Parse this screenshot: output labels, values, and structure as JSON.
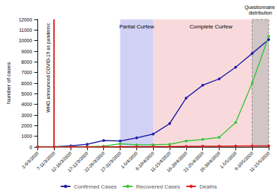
{
  "chart_data": {
    "type": "line",
    "y_label": "Number of cases",
    "categories": [
      "2-6/3/2020",
      "7-11/3/2020",
      "12-16/3/2020",
      "17-12/3/2020",
      "22-26/3/2020",
      "27-31/3/2020",
      "1-5/4/2020",
      "6-10/4/2020",
      "11-15/4/2020",
      "16-20/4/2020",
      "21-25/4/2020",
      "26-30/4/2020",
      "1-5/5/2020",
      "6-10/5/2020",
      "11-15/5/2020"
    ],
    "series": [
      {
        "name": "Confirmed Cases",
        "color": "#1f1fa8",
        "marker": "circle",
        "values": [
          5,
          20,
          100,
          250,
          600,
          550,
          850,
          1200,
          2200,
          4600,
          5800,
          6400,
          7500,
          8800,
          10100
        ]
      },
      {
        "name": "Recovered Cases",
        "color": "#3cc43c",
        "marker": "circle",
        "values": [
          0,
          0,
          10,
          20,
          60,
          300,
          200,
          200,
          250,
          550,
          700,
          900,
          2300,
          6000,
          10400
        ]
      },
      {
        "name": "Deaths",
        "color": "#e02020",
        "marker": "circle",
        "values": [
          0,
          0,
          0,
          0,
          5,
          10,
          15,
          20,
          30,
          50,
          60,
          70,
          80,
          90,
          100
        ]
      }
    ],
    "annotations": [
      {
        "text": "WHO announced COVID-19 as pandemic",
        "at": "7-11/3/2020",
        "color": "#e02020"
      },
      {
        "text": "Partial Curfew",
        "start": "27-31/3/2020",
        "end": "6-10/4/2020",
        "color": "#c9c9f3"
      },
      {
        "text": "Complete Curfew",
        "start": "6-10/4/2020",
        "end": "11-15/5/2020",
        "color": "#f8d3d6"
      },
      {
        "text": "Questionnaire distribution",
        "start": "6-10/5/2020",
        "end": "11-15/5/2020",
        "color": "#b8b8b8"
      }
    ],
    "ylim": [
      0,
      12000
    ],
    "yticks": [
      0,
      1000,
      2000,
      3000,
      4000,
      5000,
      6000,
      7000,
      8000,
      9000,
      10000,
      11000,
      12000
    ],
    "grid": false,
    "legend": "bottom"
  }
}
